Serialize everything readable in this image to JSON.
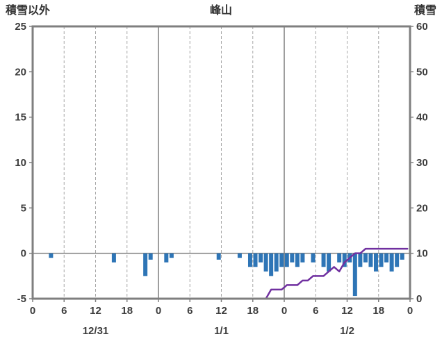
{
  "chart_data": {
    "type": "bar+line",
    "title": "峰山",
    "left_axis": {
      "title": "積雪以外",
      "min": -5,
      "max": 25,
      "tick_step": 5,
      "ticks": [
        25,
        20,
        15,
        10,
        5,
        0,
        -5
      ]
    },
    "right_axis": {
      "title": "積雪",
      "min": 0,
      "max": 60,
      "tick_step": 10,
      "ticks": [
        60,
        50,
        40,
        30,
        20,
        10,
        0
      ]
    },
    "x_axis": {
      "hours_total": 72,
      "tick_every": 6,
      "tick_labels": [
        "0",
        "6",
        "12",
        "18",
        "0",
        "6",
        "12",
        "18",
        "0",
        "6",
        "12",
        "18",
        "0"
      ],
      "date_labels": [
        {
          "label": "12/31",
          "hour": 12
        },
        {
          "label": "1/1",
          "hour": 36
        },
        {
          "label": "1/2",
          "hour": 60
        }
      ]
    },
    "grid": {
      "v_dashed_hours": [
        6,
        12,
        18,
        30,
        36,
        42,
        54,
        60,
        66
      ],
      "v_solid_hours": [
        24,
        48
      ],
      "h_solid_left_value": 0
    },
    "colors": {
      "frame": "#7f7f7f",
      "grid_solid": "#7f7f7f",
      "grid_dashed": "#a6a6a6",
      "bar": "#2e75b6",
      "line": "#7030a0"
    },
    "series": [
      {
        "name": "precipitation-bars",
        "type": "bar",
        "axis": "left",
        "color": "#2e75b6",
        "values": [
          0,
          0,
          0,
          -0.5,
          0,
          0,
          0,
          0,
          0,
          0,
          0,
          0,
          0,
          0,
          0,
          -1,
          0,
          0,
          0,
          0,
          0,
          -2.5,
          -0.7,
          0,
          0,
          -1,
          -0.5,
          0,
          0,
          0,
          0,
          0,
          0,
          0,
          0,
          -0.7,
          0,
          0,
          0,
          -0.5,
          0,
          -1.5,
          -1.5,
          -1,
          -2,
          -2.5,
          -2,
          -1.5,
          -1.5,
          -1,
          -1.5,
          -1,
          0,
          -1,
          0,
          -1.5,
          -2,
          0,
          -1,
          -1.5,
          -1,
          -4.7,
          -1.5,
          -1,
          -1.5,
          -2,
          -1.5,
          -1,
          -2,
          -1.5,
          -0.7,
          0
        ]
      },
      {
        "name": "snow-depth-line",
        "type": "line",
        "axis": "right",
        "color": "#7030a0",
        "values": [
          0,
          0,
          0,
          0,
          0,
          0,
          0,
          0,
          0,
          0,
          0,
          0,
          0,
          0,
          0,
          0,
          0,
          0,
          0,
          0,
          0,
          0,
          0,
          0,
          0,
          0,
          0,
          0,
          0,
          0,
          0,
          0,
          0,
          0,
          0,
          0,
          0,
          0,
          0,
          0,
          0,
          0,
          0,
          0,
          0,
          2,
          2,
          2,
          3,
          3,
          3,
          4,
          4,
          5,
          5,
          5,
          6,
          7,
          6,
          8,
          9,
          10,
          10,
          11,
          11,
          11,
          11,
          11,
          11,
          11,
          11,
          11
        ]
      }
    ]
  }
}
